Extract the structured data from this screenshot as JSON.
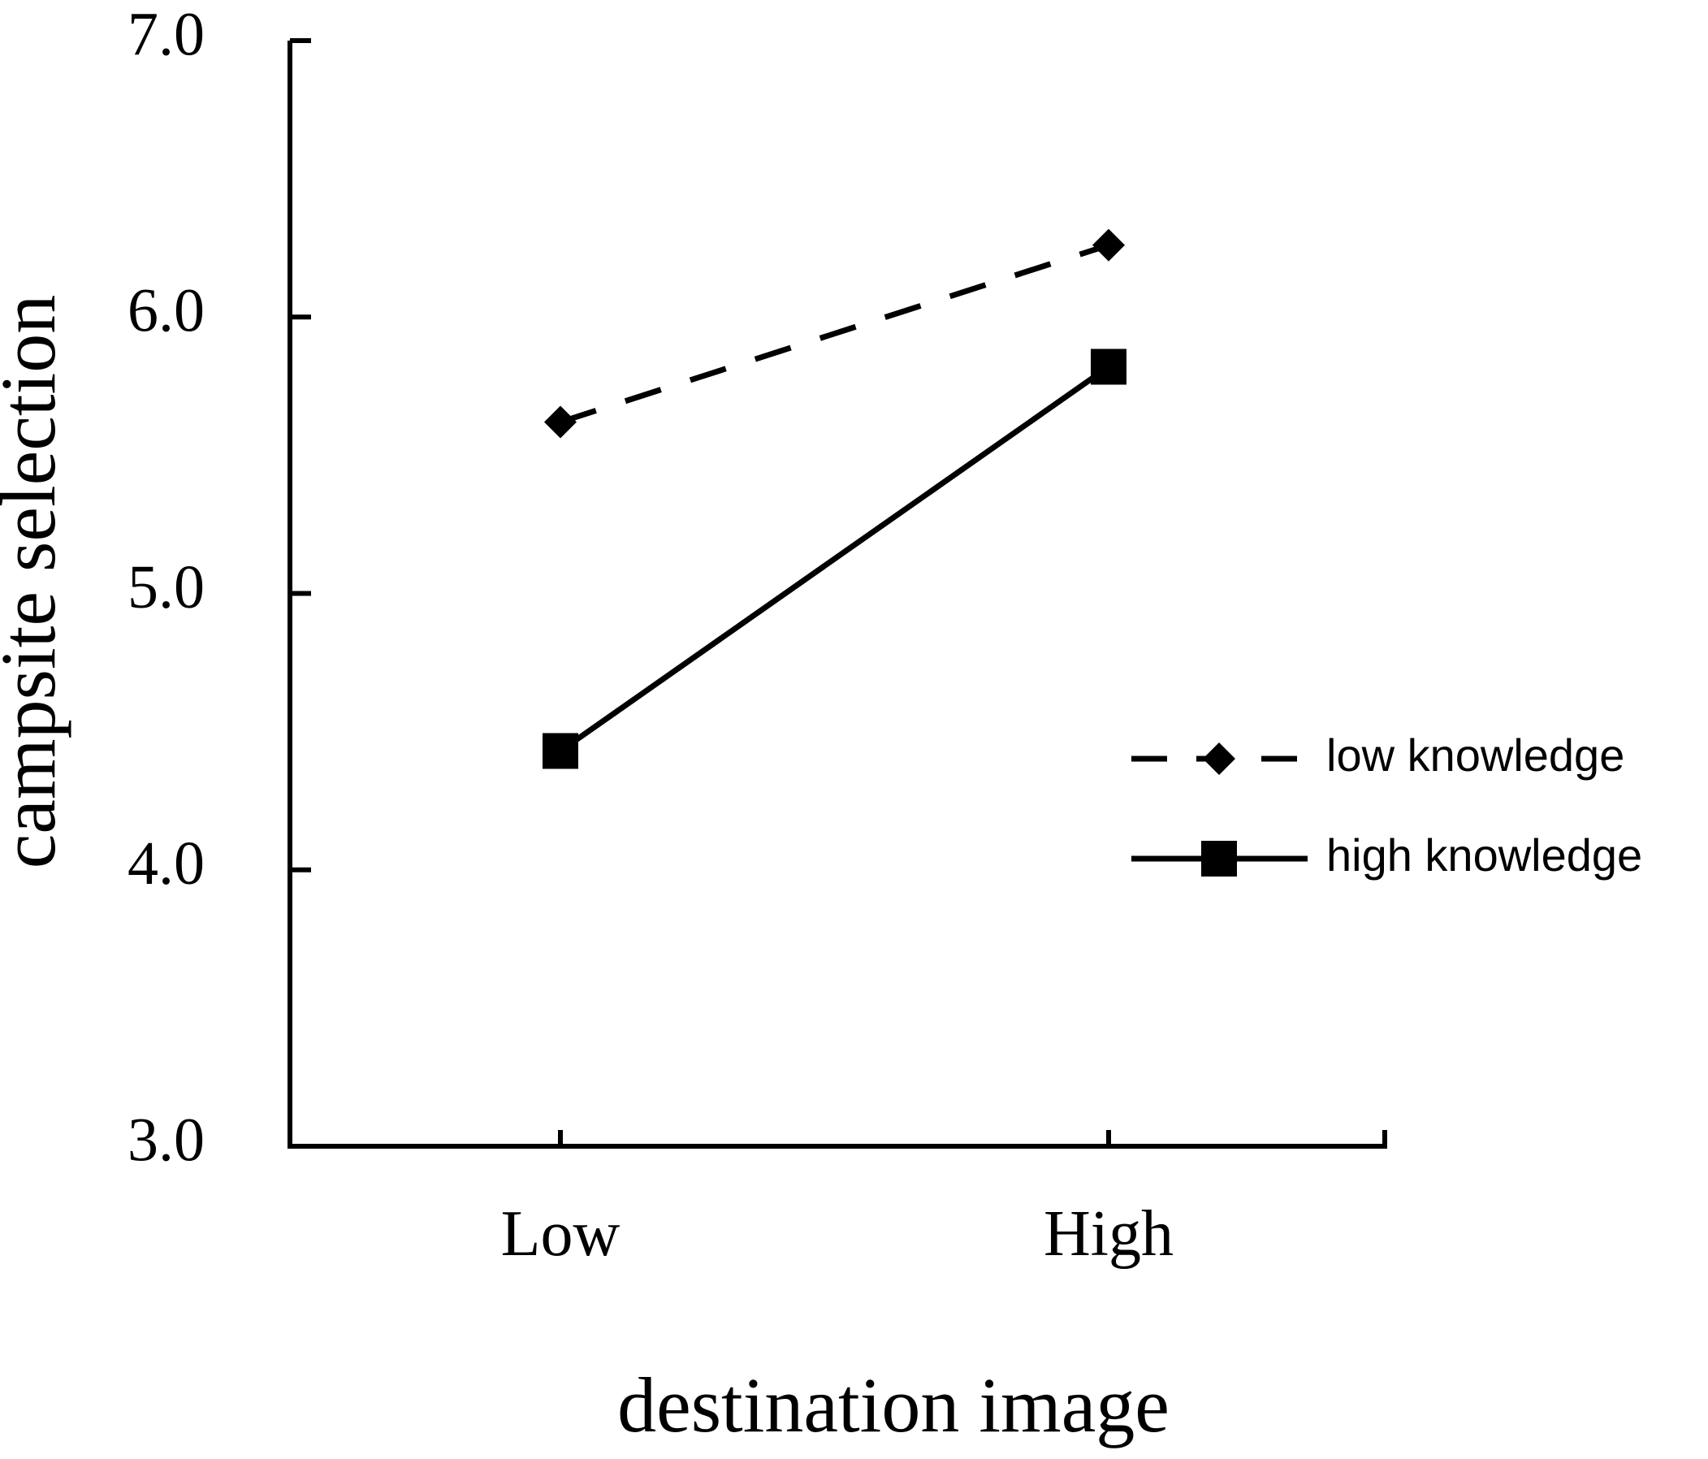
{
  "chart_data": {
    "type": "line",
    "xlabel": "destination image",
    "ylabel": "campsite selection",
    "categories": [
      "Low",
      "High"
    ],
    "ylim": [
      3.0,
      7.0
    ],
    "yticks": [
      "3.0",
      "4.0",
      "5.0",
      "6.0",
      "7.0"
    ],
    "grid": false,
    "legend_position": "right",
    "series": [
      {
        "name": "low knowledge",
        "values": [
          5.62,
          6.26
        ],
        "line": "dashed",
        "marker": "diamond",
        "color": "#000000"
      },
      {
        "name": "high knowledge",
        "values": [
          4.43,
          5.82
        ],
        "line": "solid",
        "marker": "square",
        "color": "#000000"
      }
    ]
  }
}
